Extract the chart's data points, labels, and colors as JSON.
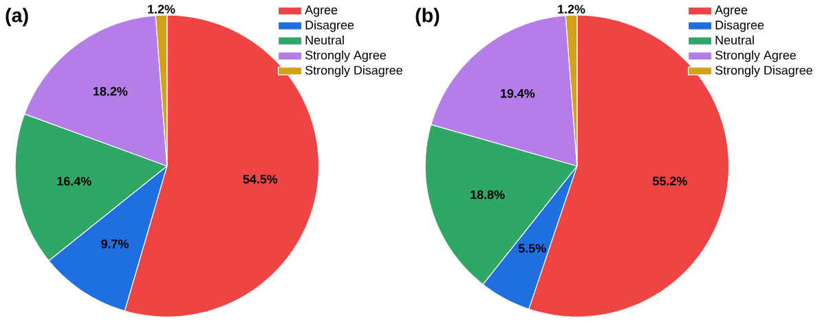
{
  "chart_data": [
    {
      "type": "pie",
      "title": "(a)",
      "categories": [
        "Agree",
        "Disagree",
        "Neutral",
        "Strongly Agree",
        "Strongly Disagree"
      ],
      "values": [
        54.5,
        9.7,
        16.4,
        18.2,
        1.2
      ],
      "colors": [
        "#f04343",
        "#1f6fe0",
        "#2fa866",
        "#b57de8",
        "#d4a218"
      ],
      "value_labels": [
        "54.5%",
        "9.7%",
        "16.4%",
        "18.2%",
        "1.2%"
      ],
      "legend": "top right"
    },
    {
      "type": "pie",
      "title": "(b)",
      "categories": [
        "Agree",
        "Disagree",
        "Neutral",
        "Strongly Agree",
        "Strongly Disagree"
      ],
      "values": [
        55.2,
        5.5,
        18.8,
        19.4,
        1.2
      ],
      "colors": [
        "#f04343",
        "#1f6fe0",
        "#2fa866",
        "#b57de8",
        "#d4a218"
      ],
      "value_labels": [
        "55.2%",
        "5.5%",
        "18.8%",
        "19.4%",
        "1.2%"
      ],
      "legend": "top right"
    }
  ]
}
